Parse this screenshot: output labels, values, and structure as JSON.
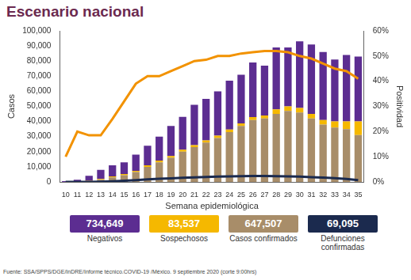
{
  "chart_data": {
    "type": "bar",
    "title": "Escenario nacional",
    "x_label": "Semana epidemiológica",
    "y_label": "Casos",
    "y2_label": "Positividad",
    "stacked": true,
    "grid": false,
    "categories": [
      "10",
      "11",
      "12",
      "13",
      "14",
      "15",
      "16",
      "17",
      "18",
      "19",
      "20",
      "21",
      "22",
      "23",
      "24",
      "25",
      "26",
      "27",
      "28",
      "29",
      "30",
      "31",
      "32",
      "33",
      "34",
      "35"
    ],
    "series": [
      {
        "name": "Casos confirmados",
        "color": "#a88d69",
        "values": [
          0,
          100,
          500,
          1500,
          3000,
          4500,
          6500,
          10000,
          13000,
          16000,
          20000,
          23000,
          26000,
          29000,
          33000,
          37000,
          41000,
          42000,
          45000,
          47000,
          46000,
          42000,
          38000,
          36000,
          35000,
          31000
        ]
      },
      {
        "name": "Sospechosos",
        "color": "#f5b800",
        "values": [
          50,
          200,
          300,
          500,
          600,
          700,
          800,
          1000,
          1100,
          1200,
          1300,
          1400,
          1500,
          1600,
          1700,
          1800,
          1900,
          2000,
          3000,
          3000,
          3000,
          3000,
          3000,
          4000,
          5000,
          9000
        ]
      },
      {
        "name": "Negativos",
        "color": "#5c2d91",
        "values": [
          450,
          1200,
          3200,
          6000,
          7400,
          7800,
          10700,
          13000,
          15900,
          19800,
          21700,
          26600,
          27500,
          29400,
          32300,
          32200,
          36100,
          33000,
          41000,
          39000,
          44000,
          46000,
          45000,
          41000,
          44000,
          43000
        ]
      },
      {
        "name": "Defunciones confirmadas",
        "type": "line",
        "color": "#1b2a4e",
        "values": [
          0,
          10,
          50,
          150,
          400,
          800,
          1200,
          1700,
          2100,
          2400,
          2700,
          3000,
          3300,
          3500,
          3700,
          3800,
          3900,
          3900,
          3800,
          3700,
          3500,
          3200,
          2900,
          2500,
          2000,
          1200
        ]
      },
      {
        "name": "Positividad",
        "type": "line",
        "axis": "y2",
        "color": "#f29200",
        "values": [
          10,
          20,
          18.5,
          18.5,
          25,
          32,
          39,
          42,
          42,
          44,
          46,
          48,
          48.5,
          50,
          50,
          51,
          51.5,
          52,
          52,
          51.5,
          50,
          49,
          47,
          45,
          44,
          41
        ]
      }
    ],
    "ylim": [
      0,
      100000
    ],
    "yticks": [
      0,
      {
        "value": 10000,
        "label": "10,000"
      },
      {
        "value": 20000,
        "label": "20,000"
      },
      {
        "value": 30000,
        "label": "30,000"
      },
      {
        "value": 40000,
        "label": "40,000"
      },
      {
        "value": 50000,
        "label": "50,000"
      },
      {
        "value": 60000,
        "label": "60,000"
      },
      {
        "value": 70000,
        "label": "70,000"
      },
      {
        "value": 80000,
        "label": "80,000"
      },
      {
        "value": 90000,
        "label": "90,000"
      },
      {
        "value": 100000,
        "label": "100,000"
      }
    ],
    "y2lim": [
      0,
      60
    ],
    "y2ticks": [
      {
        "value": 0,
        "label": "0%"
      },
      {
        "value": 10,
        "label": "10%"
      },
      {
        "value": 20,
        "label": "20%"
      },
      {
        "value": 30,
        "label": "30%"
      },
      {
        "value": 40,
        "label": "40%"
      },
      {
        "value": 50,
        "label": "50%"
      },
      {
        "value": 60,
        "label": "60%"
      }
    ]
  },
  "summary": [
    {
      "value": "734,649",
      "label": "Negativos",
      "color": "#5c2d91"
    },
    {
      "value": "83,537",
      "label": "Sospechosos",
      "color": "#f5b800"
    },
    {
      "value": "647,507",
      "label": "Casos confirmados",
      "color": "#a88d69"
    },
    {
      "value": "69,095",
      "label": "Defunciones confirmadas",
      "color": "#1b2a4e"
    }
  ],
  "source": "Fuente: SSA/SPPS/DGE/InDRE/Informe técnico.COVID-19 /México. 9 septiembre 2020 (corte 9:00hrs)"
}
